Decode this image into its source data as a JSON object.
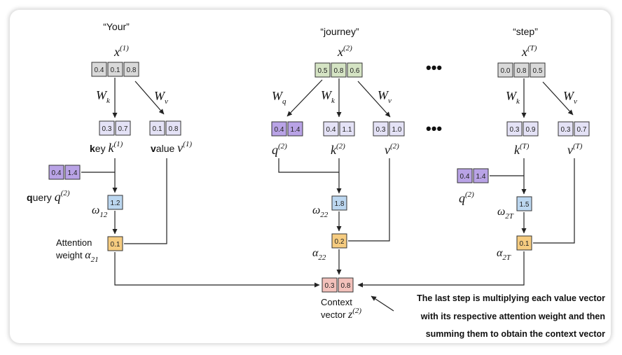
{
  "tokens": [
    {
      "word": "“Your”",
      "x_label": "x",
      "x_sup": "(1)",
      "x_values": [
        "0.4",
        "0.1",
        "0.8"
      ]
    },
    {
      "word": "“journey”",
      "x_label": "x",
      "x_sup": "(2)",
      "x_values": [
        "0.5",
        "0.8",
        "0.6"
      ]
    },
    {
      "word": "“step”",
      "x_label": "x",
      "x_sup": "(T)",
      "x_values": [
        "0.0",
        "0.8",
        "0.5"
      ]
    }
  ],
  "weights": {
    "wk": {
      "base": "W",
      "sub": "k"
    },
    "wv": {
      "base": "W",
      "sub": "v"
    },
    "wq": {
      "base": "W",
      "sub": "q"
    }
  },
  "col1": {
    "key_values": [
      "0.3",
      "0.7"
    ],
    "value_values": [
      "0.1",
      "0.8"
    ],
    "key_bold": "k",
    "key_rest": "ey ",
    "key_math": "k",
    "key_sup": "(1)",
    "value_bold": "v",
    "value_rest": "alue ",
    "value_math": "v",
    "value_sup": "(1)",
    "query_values": [
      "0.4",
      "1.4"
    ],
    "query_bold": "q",
    "query_rest": "uery ",
    "query_math": "q",
    "query_sup": "(2)",
    "score": "1.2",
    "omega": "ω",
    "omega_sub": "12",
    "attn": "0.1",
    "attn_label_1": "Attention",
    "attn_label_2": "weight ",
    "alpha": "α",
    "alpha_sub": "21"
  },
  "col2": {
    "q_values": [
      "0.4",
      "1.4"
    ],
    "k_values": [
      "0.4",
      "1.1"
    ],
    "v_values": [
      "0.3",
      "1.0"
    ],
    "q_math": "q",
    "q_sup": "(2)",
    "k_math": "k",
    "k_sup": "(2)",
    "v_math": "v",
    "v_sup": "(2)",
    "score": "1.8",
    "omega": "ω",
    "omega_sub": "22",
    "attn": "0.2",
    "alpha": "α",
    "alpha_sub": "22"
  },
  "col3": {
    "k_values": [
      "0.3",
      "0.9"
    ],
    "v_values": [
      "0.3",
      "0.7"
    ],
    "k_math": "k",
    "k_sup": "(T)",
    "v_math": "v",
    "v_sup": "(T)",
    "query_values": [
      "0.4",
      "1.4"
    ],
    "q_math": "q",
    "q_sup": "(2)",
    "score": "1.5",
    "omega": "ω",
    "omega_sub": "2T",
    "attn": "0.1",
    "alpha": "α",
    "alpha_sub": "2T"
  },
  "context": {
    "values": [
      "0.3",
      "0.8"
    ],
    "label_1": "Context",
    "label_2": "vector ",
    "z": "z",
    "z_sup": "(2)"
  },
  "ellipsis": "•••",
  "caption": [
    "The last step is multiplying each value vector",
    "with its respective attention weight and then",
    "summing them to obtain the context vector"
  ],
  "colors": {
    "input_gray": "#d9d9d9",
    "input_green": "#d5e4c4",
    "kv_lavender": "#e4e2f6",
    "query_purple": "#b9a3e6",
    "score_blue": "#bcd7f0",
    "attn_orange": "#f6cc80",
    "context_pink": "#f3c1bb",
    "cell_border": "#333333"
  }
}
